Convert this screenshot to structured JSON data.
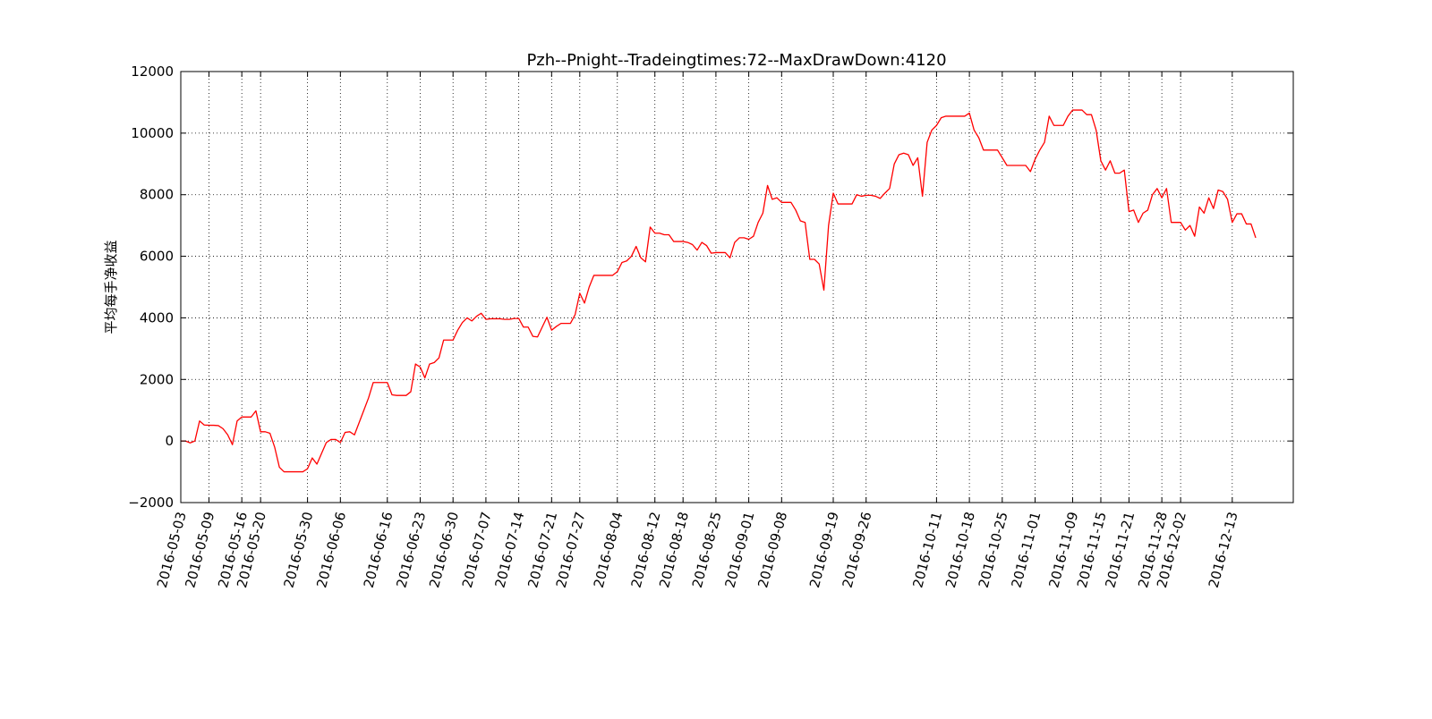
{
  "chart_data": {
    "type": "line",
    "title": "Pzh--Pnight--Tradeingtimes:72--MaxDrawDown:4120",
    "xlabel": "",
    "ylabel": "平均每手净收益",
    "ylim": [
      -2000,
      12000
    ],
    "yticks": [
      -2000,
      0,
      2000,
      4000,
      6000,
      8000,
      10000,
      12000
    ],
    "ytick_labels": [
      "−2000",
      "0",
      "2000",
      "4000",
      "6000",
      "8000",
      "10000",
      "12000"
    ],
    "xlim": [
      "2016-05-03",
      "2016-12-26"
    ],
    "xticks": [
      "2016-05-03",
      "2016-05-09",
      "2016-05-16",
      "2016-05-20",
      "2016-05-30",
      "2016-06-06",
      "2016-06-16",
      "2016-06-23",
      "2016-06-30",
      "2016-07-07",
      "2016-07-14",
      "2016-07-21",
      "2016-07-27",
      "2016-08-04",
      "2016-08-12",
      "2016-08-18",
      "2016-08-25",
      "2016-09-01",
      "2016-09-08",
      "2016-09-19",
      "2016-09-26",
      "2016-10-11",
      "2016-10-18",
      "2016-10-25",
      "2016-11-01",
      "2016-11-09",
      "2016-11-15",
      "2016-11-21",
      "2016-11-28",
      "2016-12-02",
      "2016-12-13"
    ],
    "grid": true,
    "series": [
      {
        "color": "#ff0000",
        "points": [
          [
            "2016-05-03",
            0
          ],
          [
            "2016-05-04",
            0
          ],
          [
            "2016-05-05",
            -60
          ],
          [
            "2016-05-06",
            0
          ],
          [
            "2016-05-07",
            650
          ],
          [
            "2016-05-08",
            520
          ],
          [
            "2016-05-09",
            510
          ],
          [
            "2016-05-10",
            510
          ],
          [
            "2016-05-11",
            500
          ],
          [
            "2016-05-12",
            400
          ],
          [
            "2016-05-13",
            200
          ],
          [
            "2016-05-14",
            -120
          ],
          [
            "2016-05-15",
            650
          ],
          [
            "2016-05-16",
            780
          ],
          [
            "2016-05-17",
            780
          ],
          [
            "2016-05-18",
            780
          ],
          [
            "2016-05-19",
            980
          ],
          [
            "2016-05-20",
            300
          ],
          [
            "2016-05-21",
            300
          ],
          [
            "2016-05-22",
            250
          ],
          [
            "2016-05-23",
            -200
          ],
          [
            "2016-05-24",
            -850
          ],
          [
            "2016-05-25",
            -1000
          ],
          [
            "2016-05-26",
            -1000
          ],
          [
            "2016-05-27",
            -1000
          ],
          [
            "2016-05-28",
            -1000
          ],
          [
            "2016-05-29",
            -1000
          ],
          [
            "2016-05-30",
            -900
          ],
          [
            "2016-05-31",
            -550
          ],
          [
            "2016-06-01",
            -750
          ],
          [
            "2016-06-02",
            -400
          ],
          [
            "2016-06-03",
            -50
          ],
          [
            "2016-06-04",
            50
          ],
          [
            "2016-06-05",
            50
          ],
          [
            "2016-06-06",
            -50
          ],
          [
            "2016-06-07",
            280
          ],
          [
            "2016-06-08",
            300
          ],
          [
            "2016-06-09",
            200
          ],
          [
            "2016-06-10",
            600
          ],
          [
            "2016-06-11",
            1000
          ],
          [
            "2016-06-12",
            1400
          ],
          [
            "2016-06-13",
            1900
          ],
          [
            "2016-06-14",
            1900
          ],
          [
            "2016-06-15",
            1900
          ],
          [
            "2016-06-16",
            1900
          ],
          [
            "2016-06-17",
            1500
          ],
          [
            "2016-06-18",
            1480
          ],
          [
            "2016-06-19",
            1480
          ],
          [
            "2016-06-20",
            1480
          ],
          [
            "2016-06-21",
            1600
          ],
          [
            "2016-06-22",
            2500
          ],
          [
            "2016-06-23",
            2400
          ],
          [
            "2016-06-24",
            2050
          ],
          [
            "2016-06-25",
            2500
          ],
          [
            "2016-06-26",
            2550
          ],
          [
            "2016-06-27",
            2700
          ],
          [
            "2016-06-28",
            3280
          ],
          [
            "2016-06-29",
            3280
          ],
          [
            "2016-06-30",
            3280
          ],
          [
            "2016-07-01",
            3600
          ],
          [
            "2016-07-02",
            3850
          ],
          [
            "2016-07-03",
            4000
          ],
          [
            "2016-07-04",
            3900
          ],
          [
            "2016-07-05",
            4050
          ],
          [
            "2016-07-06",
            4150
          ],
          [
            "2016-07-07",
            3950
          ],
          [
            "2016-07-08",
            3970
          ],
          [
            "2016-07-09",
            3970
          ],
          [
            "2016-07-10",
            3970
          ],
          [
            "2016-07-11",
            3950
          ],
          [
            "2016-07-12",
            3950
          ],
          [
            "2016-07-13",
            3980
          ],
          [
            "2016-07-14",
            3980
          ],
          [
            "2016-07-15",
            3700
          ],
          [
            "2016-07-16",
            3700
          ],
          [
            "2016-07-17",
            3400
          ],
          [
            "2016-07-18",
            3380
          ],
          [
            "2016-07-19",
            3700
          ],
          [
            "2016-07-20",
            4020
          ],
          [
            "2016-07-21",
            3600
          ],
          [
            "2016-07-22",
            3720
          ],
          [
            "2016-07-23",
            3820
          ],
          [
            "2016-07-24",
            3820
          ],
          [
            "2016-07-25",
            3820
          ],
          [
            "2016-07-26",
            4100
          ],
          [
            "2016-07-27",
            4800
          ],
          [
            "2016-07-28",
            4480
          ],
          [
            "2016-07-29",
            5000
          ],
          [
            "2016-07-30",
            5380
          ],
          [
            "2016-07-31",
            5380
          ],
          [
            "2016-08-01",
            5380
          ],
          [
            "2016-08-02",
            5380
          ],
          [
            "2016-08-03",
            5380
          ],
          [
            "2016-08-04",
            5500
          ],
          [
            "2016-08-05",
            5800
          ],
          [
            "2016-08-06",
            5850
          ],
          [
            "2016-08-07",
            6000
          ],
          [
            "2016-08-08",
            6320
          ],
          [
            "2016-08-09",
            5950
          ],
          [
            "2016-08-10",
            5820
          ],
          [
            "2016-08-11",
            6950
          ],
          [
            "2016-08-12",
            6750
          ],
          [
            "2016-08-13",
            6750
          ],
          [
            "2016-08-14",
            6700
          ],
          [
            "2016-08-15",
            6700
          ],
          [
            "2016-08-16",
            6480
          ],
          [
            "2016-08-17",
            6480
          ],
          [
            "2016-08-18",
            6480
          ],
          [
            "2016-08-19",
            6450
          ],
          [
            "2016-08-20",
            6380
          ],
          [
            "2016-08-21",
            6200
          ],
          [
            "2016-08-22",
            6450
          ],
          [
            "2016-08-23",
            6350
          ],
          [
            "2016-08-24",
            6100
          ],
          [
            "2016-08-25",
            6120
          ],
          [
            "2016-08-26",
            6120
          ],
          [
            "2016-08-27",
            6120
          ],
          [
            "2016-08-28",
            5950
          ],
          [
            "2016-08-29",
            6450
          ],
          [
            "2016-08-30",
            6600
          ],
          [
            "2016-08-31",
            6600
          ],
          [
            "2016-09-01",
            6550
          ],
          [
            "2016-09-02",
            6650
          ],
          [
            "2016-09-03",
            7100
          ],
          [
            "2016-09-04",
            7400
          ],
          [
            "2016-09-05",
            8300
          ],
          [
            "2016-09-06",
            7850
          ],
          [
            "2016-09-07",
            7900
          ],
          [
            "2016-09-08",
            7750
          ],
          [
            "2016-09-09",
            7750
          ],
          [
            "2016-09-10",
            7750
          ],
          [
            "2016-09-11",
            7500
          ],
          [
            "2016-09-12",
            7150
          ],
          [
            "2016-09-13",
            7100
          ],
          [
            "2016-09-14",
            5900
          ],
          [
            "2016-09-15",
            5900
          ],
          [
            "2016-09-16",
            5750
          ],
          [
            "2016-09-17",
            4900
          ],
          [
            "2016-09-18",
            7000
          ],
          [
            "2016-09-19",
            8050
          ],
          [
            "2016-09-20",
            7700
          ],
          [
            "2016-09-21",
            7700
          ],
          [
            "2016-09-22",
            7700
          ],
          [
            "2016-09-23",
            7700
          ],
          [
            "2016-09-24",
            8000
          ],
          [
            "2016-09-25",
            7950
          ],
          [
            "2016-09-26",
            7980
          ],
          [
            "2016-09-27",
            7980
          ],
          [
            "2016-09-28",
            7950
          ],
          [
            "2016-09-29",
            7880
          ],
          [
            "2016-09-30",
            8050
          ],
          [
            "2016-10-01",
            8200
          ],
          [
            "2016-10-02",
            9000
          ],
          [
            "2016-10-03",
            9300
          ],
          [
            "2016-10-04",
            9350
          ],
          [
            "2016-10-05",
            9300
          ],
          [
            "2016-10-06",
            8950
          ],
          [
            "2016-10-07",
            9200
          ],
          [
            "2016-10-08",
            7950
          ],
          [
            "2016-10-09",
            9700
          ],
          [
            "2016-10-10",
            10100
          ],
          [
            "2016-10-11",
            10250
          ],
          [
            "2016-10-12",
            10500
          ],
          [
            "2016-10-13",
            10550
          ],
          [
            "2016-10-14",
            10550
          ],
          [
            "2016-10-15",
            10550
          ],
          [
            "2016-10-16",
            10550
          ],
          [
            "2016-10-17",
            10550
          ],
          [
            "2016-10-18",
            10650
          ],
          [
            "2016-10-19",
            10100
          ],
          [
            "2016-10-20",
            9850
          ],
          [
            "2016-10-21",
            9450
          ],
          [
            "2016-10-22",
            9450
          ],
          [
            "2016-10-23",
            9450
          ],
          [
            "2016-10-24",
            9450
          ],
          [
            "2016-10-25",
            9200
          ],
          [
            "2016-10-26",
            8950
          ],
          [
            "2016-10-27",
            8950
          ],
          [
            "2016-10-28",
            8950
          ],
          [
            "2016-10-29",
            8950
          ],
          [
            "2016-10-30",
            8950
          ],
          [
            "2016-10-31",
            8750
          ],
          [
            "2016-11-01",
            9150
          ],
          [
            "2016-11-02",
            9450
          ],
          [
            "2016-11-03",
            9700
          ],
          [
            "2016-11-04",
            10550
          ],
          [
            "2016-11-05",
            10250
          ],
          [
            "2016-11-06",
            10250
          ],
          [
            "2016-11-07",
            10250
          ],
          [
            "2016-11-08",
            10550
          ],
          [
            "2016-11-09",
            10750
          ],
          [
            "2016-11-10",
            10750
          ],
          [
            "2016-11-11",
            10750
          ],
          [
            "2016-11-12",
            10600
          ],
          [
            "2016-11-13",
            10600
          ],
          [
            "2016-11-14",
            10100
          ],
          [
            "2016-11-15",
            9100
          ],
          [
            "2016-11-16",
            8800
          ],
          [
            "2016-11-17",
            9100
          ],
          [
            "2016-11-18",
            8700
          ],
          [
            "2016-11-19",
            8700
          ],
          [
            "2016-11-20",
            8800
          ],
          [
            "2016-11-21",
            7450
          ],
          [
            "2016-11-22",
            7500
          ],
          [
            "2016-11-23",
            7100
          ],
          [
            "2016-11-24",
            7400
          ],
          [
            "2016-11-25",
            7500
          ],
          [
            "2016-11-26",
            8000
          ],
          [
            "2016-11-27",
            8200
          ],
          [
            "2016-11-28",
            7900
          ],
          [
            "2016-11-29",
            8200
          ],
          [
            "2016-11-30",
            7100
          ],
          [
            "2016-12-01",
            7100
          ],
          [
            "2016-12-02",
            7100
          ],
          [
            "2016-12-03",
            6850
          ],
          [
            "2016-12-04",
            7000
          ],
          [
            "2016-12-05",
            6650
          ],
          [
            "2016-12-06",
            7600
          ],
          [
            "2016-12-07",
            7400
          ],
          [
            "2016-12-08",
            7900
          ],
          [
            "2016-12-09",
            7550
          ],
          [
            "2016-12-10",
            8150
          ],
          [
            "2016-12-11",
            8100
          ],
          [
            "2016-12-12",
            7850
          ],
          [
            "2016-12-13",
            7100
          ],
          [
            "2016-12-14",
            7380
          ],
          [
            "2016-12-15",
            7380
          ],
          [
            "2016-12-16",
            7050
          ],
          [
            "2016-12-17",
            7050
          ],
          [
            "2016-12-18",
            6600
          ]
        ]
      }
    ]
  }
}
